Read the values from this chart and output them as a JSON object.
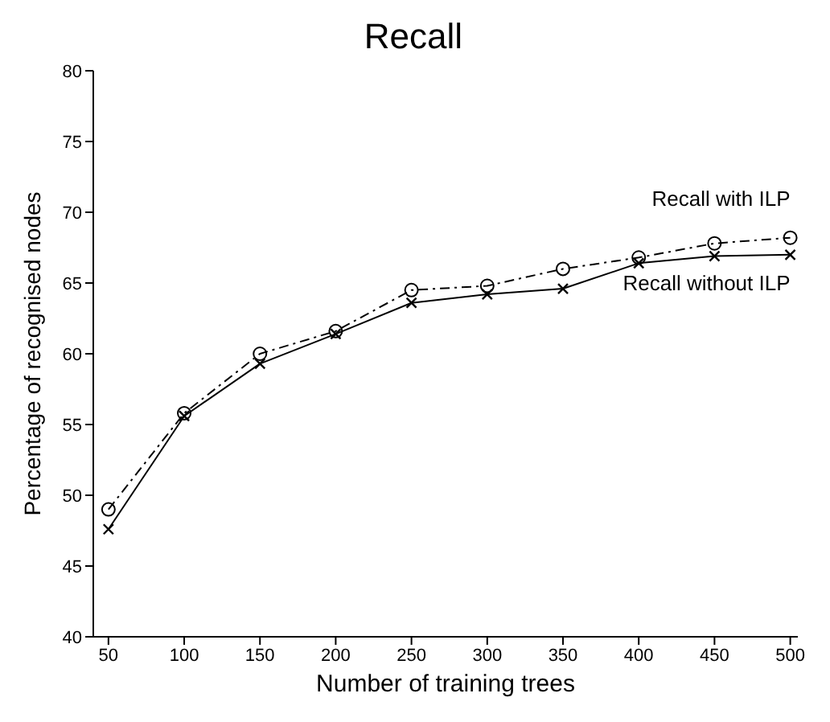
{
  "chart_data": {
    "type": "line",
    "title": "Recall",
    "xlabel": "Number of training trees",
    "ylabel": "Percentage of recognised nodes",
    "x": [
      50,
      100,
      150,
      200,
      250,
      300,
      350,
      400,
      450,
      500
    ],
    "series": [
      {
        "name": "Recall with ILP",
        "color": "#000000",
        "marker": "circle",
        "line_style": "dashdot",
        "values": [
          49.0,
          55.8,
          60.0,
          61.6,
          64.5,
          64.8,
          66.0,
          66.8,
          67.8,
          68.2
        ]
      },
      {
        "name": "Recall without ILP",
        "color": "#000000",
        "marker": "cross",
        "line_style": "solid",
        "values": [
          47.6,
          55.6,
          59.3,
          61.4,
          63.6,
          64.2,
          64.6,
          66.4,
          66.9,
          67.0
        ]
      }
    ],
    "xlim": [
      40,
      505
    ],
    "xticks": [
      50,
      100,
      150,
      200,
      250,
      300,
      350,
      400,
      450,
      500
    ],
    "ylim": [
      40,
      80
    ],
    "yticks": [
      40,
      45,
      50,
      55,
      60,
      65,
      70,
      75,
      80
    ],
    "grid": false,
    "legend": false
  }
}
